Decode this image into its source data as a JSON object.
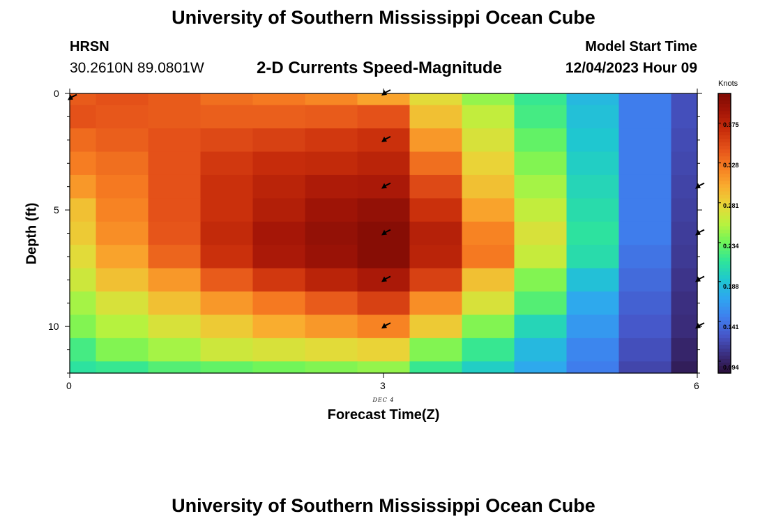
{
  "header": {
    "title": "University of Southern Mississippi Ocean Cube",
    "station": "HRSN",
    "coords": "30.2610N  89.0801W",
    "subtitle": "2-D Currents Speed-Magnitude",
    "model_start_label": "Model Start Time",
    "model_start_value": "12/04/2023 Hour 09"
  },
  "footer": {
    "title": "University of Southern Mississippi Ocean Cube"
  },
  "colorbar": {
    "unit": "Knots",
    "min": 0.08,
    "max": 0.41,
    "ticks": [
      "0.375",
      "0.328",
      "0.281",
      "0.234",
      "0.188",
      "0.141",
      "0.094"
    ],
    "colors": [
      "#2b0f3a",
      "#3b2f80",
      "#4656c8",
      "#3f7fee",
      "#2fa6f0",
      "#1fc7d0",
      "#2ee59a",
      "#6ef55a",
      "#b9f23e",
      "#e8d738",
      "#f9ad2f",
      "#f77f22",
      "#e5531a",
      "#c92e0b",
      "#a51607",
      "#7e0a04"
    ]
  },
  "chart_data": {
    "type": "heatmap",
    "title": "2-D Currents Speed-Magnitude",
    "xlabel": "Forecast Time(Z)",
    "ylabel": "Depth (ft)",
    "x_secondary_label": "DEC 4",
    "xlim": [
      0,
      6
    ],
    "ylim": [
      0,
      12
    ],
    "xticks": [
      "0",
      "3",
      "6"
    ],
    "yticks": [
      "0",
      "5",
      "10"
    ],
    "units": "Knots",
    "x_step": 0.5,
    "depth_step": 1,
    "values": [
      [
        0.34,
        0.345,
        0.34,
        0.33,
        0.325,
        0.318,
        0.305,
        0.275,
        0.245,
        0.215,
        0.18,
        0.145,
        0.12
      ],
      [
        0.345,
        0.342,
        0.34,
        0.338,
        0.338,
        0.34,
        0.345,
        0.29,
        0.26,
        0.22,
        0.185,
        0.145,
        0.12
      ],
      [
        0.332,
        0.338,
        0.345,
        0.35,
        0.355,
        0.36,
        0.365,
        0.31,
        0.27,
        0.23,
        0.19,
        0.145,
        0.118
      ],
      [
        0.323,
        0.33,
        0.345,
        0.36,
        0.368,
        0.37,
        0.375,
        0.33,
        0.28,
        0.24,
        0.195,
        0.145,
        0.116
      ],
      [
        0.31,
        0.325,
        0.345,
        0.365,
        0.375,
        0.383,
        0.385,
        0.35,
        0.29,
        0.25,
        0.2,
        0.145,
        0.114
      ],
      [
        0.29,
        0.32,
        0.345,
        0.365,
        0.38,
        0.392,
        0.398,
        0.365,
        0.305,
        0.26,
        0.205,
        0.145,
        0.112
      ],
      [
        0.285,
        0.315,
        0.343,
        0.37,
        0.388,
        0.398,
        0.405,
        0.378,
        0.32,
        0.27,
        0.21,
        0.145,
        0.11
      ],
      [
        0.275,
        0.305,
        0.335,
        0.365,
        0.385,
        0.395,
        0.405,
        0.375,
        0.325,
        0.262,
        0.205,
        0.14,
        0.108
      ],
      [
        0.265,
        0.29,
        0.31,
        0.34,
        0.36,
        0.375,
        0.385,
        0.355,
        0.29,
        0.24,
        0.185,
        0.135,
        0.105
      ],
      [
        0.25,
        0.27,
        0.29,
        0.31,
        0.325,
        0.34,
        0.355,
        0.315,
        0.27,
        0.225,
        0.17,
        0.13,
        0.102
      ],
      [
        0.24,
        0.255,
        0.27,
        0.285,
        0.3,
        0.31,
        0.32,
        0.285,
        0.24,
        0.2,
        0.16,
        0.125,
        0.1
      ],
      [
        0.22,
        0.24,
        0.25,
        0.265,
        0.27,
        0.275,
        0.28,
        0.24,
        0.215,
        0.18,
        0.15,
        0.12,
        0.095
      ],
      [
        0.21,
        0.215,
        0.225,
        0.23,
        0.235,
        0.24,
        0.245,
        0.215,
        0.195,
        0.17,
        0.145,
        0.115,
        0.09
      ]
    ],
    "vectors": [
      {
        "time": 0,
        "depth": 0.2,
        "label": "SW"
      },
      {
        "time": 3,
        "depth": 0,
        "label": "SW"
      },
      {
        "time": 3,
        "depth": 2,
        "label": "SW"
      },
      {
        "time": 3,
        "depth": 4,
        "label": "SW"
      },
      {
        "time": 3,
        "depth": 6,
        "label": "SW"
      },
      {
        "time": 3,
        "depth": 8,
        "label": "SW"
      },
      {
        "time": 3,
        "depth": 10,
        "label": "SW"
      },
      {
        "time": 6,
        "depth": 4,
        "label": "SW"
      },
      {
        "time": 6,
        "depth": 6,
        "label": "SW"
      },
      {
        "time": 6,
        "depth": 8,
        "label": "SW"
      },
      {
        "time": 6,
        "depth": 10,
        "label": "SW"
      }
    ]
  }
}
